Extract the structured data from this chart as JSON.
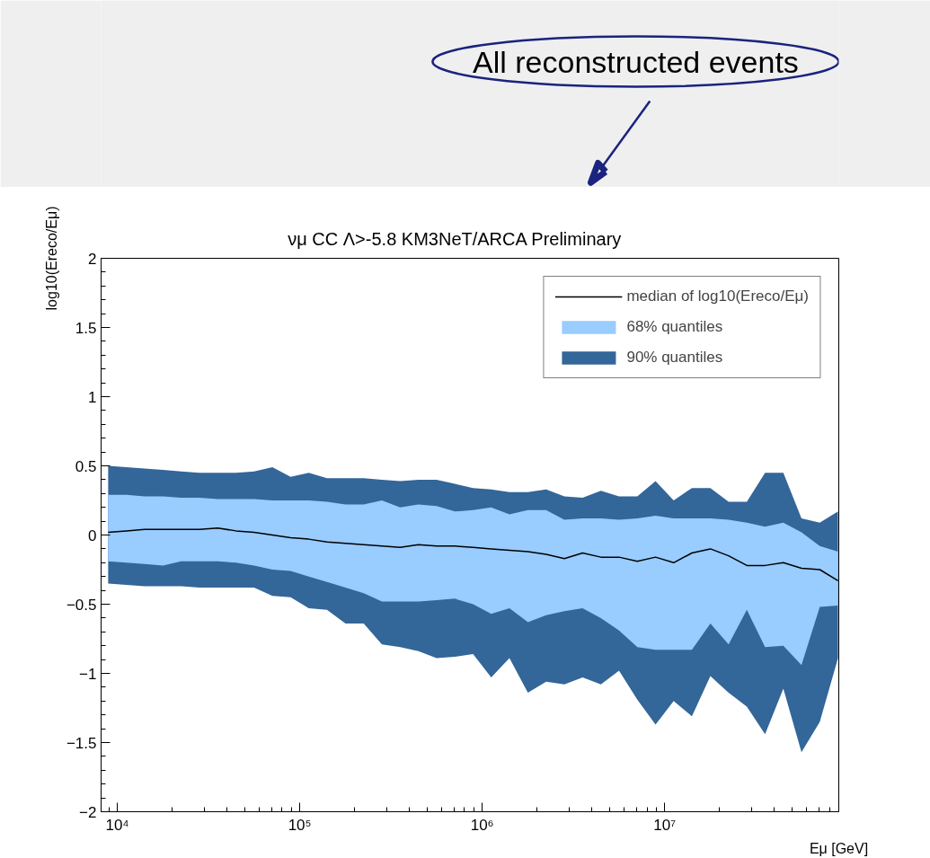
{
  "chart_data": {
    "type": "line",
    "title": "νμ CC    Λ>-5.8    KM3NeT/ARCA Preliminary",
    "xlabel": "Eμ [GeV]",
    "ylabel": "log10(Ereco/Eμ)",
    "annotations": [
      "All reconstructed events"
    ],
    "x": [
      8910,
      11200,
      14100,
      17800,
      22400,
      28200,
      35500,
      44700,
      56200,
      70800,
      89100,
      112000,
      141000,
      178000,
      224000,
      282000,
      355000,
      447000,
      562000,
      708000,
      891000,
      1120000,
      1410000,
      1780000,
      2240000,
      2820000,
      3550000,
      4470000,
      5620000,
      7080000,
      8910000,
      11200000,
      14100000,
      17800000,
      22400000,
      28200000,
      35500000,
      44700000,
      56200000,
      70800000,
      89100000
    ],
    "series": [
      {
        "name": "median of log10(Ereco/Eμ)",
        "type": "line",
        "color": "#000000",
        "values": [
          0.02,
          0.03,
          0.04,
          0.04,
          0.04,
          0.04,
          0.05,
          0.03,
          0.02,
          0.0,
          -0.02,
          -0.03,
          -0.05,
          -0.06,
          -0.07,
          -0.08,
          -0.09,
          -0.07,
          -0.08,
          -0.08,
          -0.09,
          -0.1,
          -0.11,
          -0.12,
          -0.14,
          -0.17,
          -0.13,
          -0.16,
          -0.16,
          -0.19,
          -0.16,
          -0.2,
          -0.13,
          -0.1,
          -0.15,
          -0.22,
          -0.22,
          -0.2,
          -0.24,
          -0.25,
          -0.33
        ]
      },
      {
        "name": "68% quantiles",
        "color": "#99ccff",
        "values": [
          null,
          null,
          null,
          null,
          null,
          null,
          null,
          null,
          null,
          null,
          null,
          null,
          null,
          null,
          null,
          null,
          null,
          null,
          null,
          null,
          null,
          null,
          null,
          null,
          null,
          null,
          null,
          null,
          null,
          null,
          null,
          null,
          null,
          null,
          null,
          null,
          null,
          null,
          null,
          null,
          null
        ],
        "lower": [
          -0.19,
          -0.2,
          -0.21,
          -0.22,
          -0.19,
          -0.19,
          -0.19,
          -0.2,
          -0.22,
          -0.25,
          -0.26,
          -0.3,
          -0.34,
          -0.38,
          -0.42,
          -0.48,
          -0.48,
          -0.48,
          -0.47,
          -0.46,
          -0.5,
          -0.57,
          -0.53,
          -0.63,
          -0.58,
          -0.55,
          -0.53,
          -0.6,
          -0.69,
          -0.81,
          -0.83,
          -0.83,
          -0.83,
          -0.64,
          -0.79,
          -0.54,
          -0.81,
          -0.8,
          -0.94,
          -0.52,
          -0.51
        ],
        "upper": [
          0.29,
          0.29,
          0.28,
          0.28,
          0.27,
          0.27,
          0.26,
          0.26,
          0.26,
          0.25,
          0.25,
          0.25,
          0.24,
          0.22,
          0.22,
          0.25,
          0.2,
          0.22,
          0.21,
          0.17,
          0.18,
          0.2,
          0.15,
          0.18,
          0.18,
          0.11,
          0.12,
          0.12,
          0.11,
          0.12,
          0.14,
          0.12,
          0.12,
          0.12,
          0.11,
          0.09,
          0.06,
          0.09,
          0.02,
          -0.08,
          -0.12
        ]
      },
      {
        "name": "90% quantiles",
        "color": "#336699",
        "values": [
          null,
          null,
          null,
          null,
          null,
          null,
          null,
          null,
          null,
          null,
          null,
          null,
          null,
          null,
          null,
          null,
          null,
          null,
          null,
          null,
          null,
          null,
          null,
          null,
          null,
          null,
          null,
          null,
          null,
          null,
          null,
          null,
          null,
          null,
          null,
          null,
          null,
          null,
          null,
          null,
          null
        ],
        "lower": [
          -0.35,
          -0.36,
          -0.37,
          -0.37,
          -0.37,
          -0.38,
          -0.38,
          -0.38,
          -0.38,
          -0.44,
          -0.45,
          -0.53,
          -0.54,
          -0.64,
          -0.64,
          -0.79,
          -0.81,
          -0.84,
          -0.89,
          -0.88,
          -0.86,
          -1.03,
          -0.89,
          -1.14,
          -1.06,
          -1.08,
          -1.03,
          -1.08,
          -0.98,
          -1.19,
          -1.37,
          -1.2,
          -1.31,
          -1.02,
          -1.14,
          -1.24,
          -1.44,
          -1.11,
          -1.57,
          -1.35,
          -0.89
        ],
        "upper": [
          0.5,
          0.49,
          0.48,
          0.47,
          0.46,
          0.45,
          0.45,
          0.45,
          0.46,
          0.49,
          0.42,
          0.45,
          0.41,
          0.41,
          0.41,
          0.4,
          0.39,
          0.4,
          0.4,
          0.37,
          0.34,
          0.33,
          0.31,
          0.31,
          0.33,
          0.28,
          0.27,
          0.32,
          0.28,
          0.28,
          0.39,
          0.25,
          0.34,
          0.34,
          0.24,
          0.24,
          0.45,
          0.45,
          0.12,
          0.09,
          0.17
        ]
      }
    ],
    "log": "x",
    "xlim": [
      8150,
      90000000
    ],
    "xticks": [
      {
        "value": 10000,
        "label": "10⁴"
      },
      {
        "value": 100000,
        "label": "10⁵"
      },
      {
        "value": 1000000,
        "label": "10⁶"
      },
      {
        "value": 10000000,
        "label": "10⁷"
      }
    ],
    "ylim": [
      -2,
      2
    ],
    "yticks": [
      {
        "value": -2,
        "label": "−2"
      },
      {
        "value": -1.5,
        "label": "−1.5"
      },
      {
        "value": -1,
        "label": "−1"
      },
      {
        "value": -0.5,
        "label": "−0.5"
      },
      0,
      0.5,
      1,
      1.5,
      2
    ],
    "grid": false,
    "legend": "top right"
  }
}
